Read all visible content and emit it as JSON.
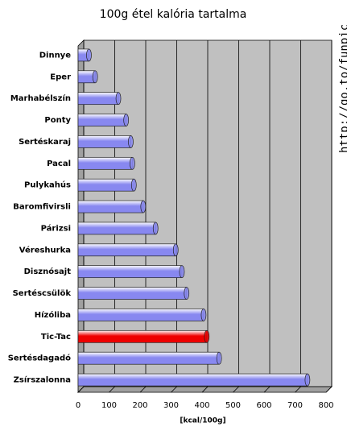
{
  "chart_data": {
    "type": "bar",
    "orientation": "horizontal",
    "title": "100g étel kalória tartalma",
    "x_label": "[kcal/100g]",
    "categories": [
      "Dinnye",
      "Eper",
      "Marhabélszín",
      "Ponty",
      "Sertéskaraj",
      "Pacal",
      "Pulykahús",
      "Baromfivirsli",
      "Párizsi",
      "Véreshurka",
      "Disznósajt",
      "Sertéscsülök",
      "Hízóliba",
      "Tic-Tac",
      "Sertésdagadó",
      "Zsírszalonna"
    ],
    "values": [
      35,
      55,
      130,
      155,
      170,
      175,
      180,
      210,
      250,
      315,
      335,
      350,
      405,
      415,
      455,
      740
    ],
    "colors": [
      "#8888f0",
      "#8888f0",
      "#8888f0",
      "#8888f0",
      "#8888f0",
      "#8888f0",
      "#8888f0",
      "#8888f0",
      "#8888f0",
      "#8888f0",
      "#8888f0",
      "#8888f0",
      "#8888f0",
      "#ee0000",
      "#8888f0",
      "#8888f0"
    ],
    "xlim": [
      0,
      800
    ],
    "xticks": [
      0,
      100,
      200,
      300,
      400,
      500,
      600,
      700,
      800
    ],
    "grid": true,
    "watermark": "http://go.to/funpic"
  }
}
